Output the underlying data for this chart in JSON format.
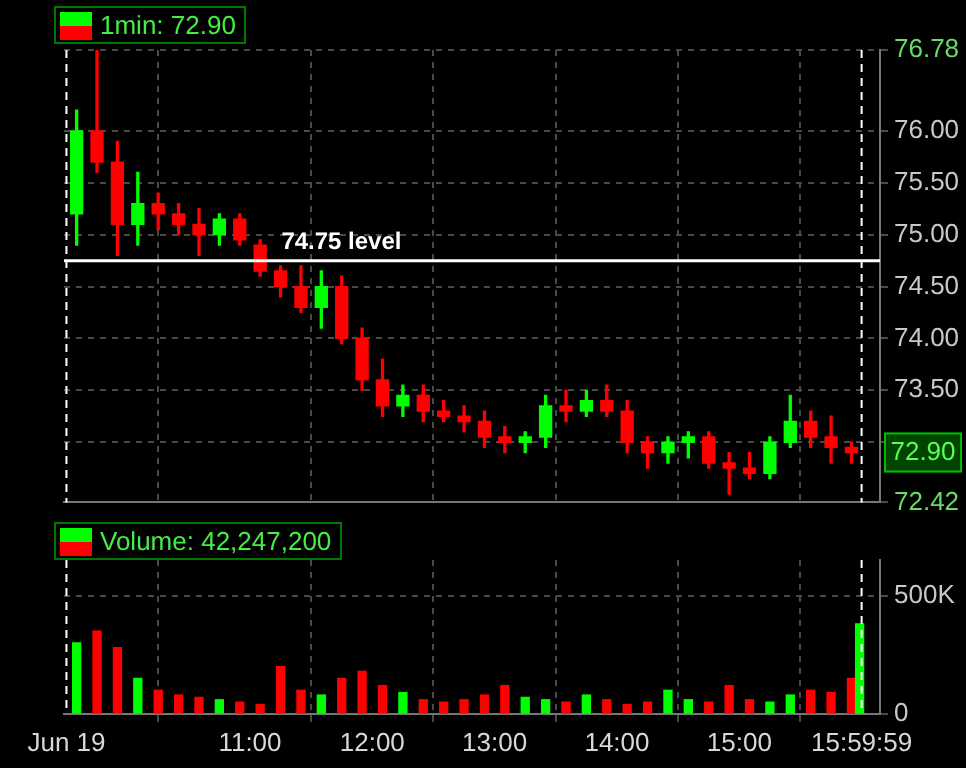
{
  "chart_data": [
    {
      "type": "candlestick",
      "series": [
        {
          "name": "1min: 72.90",
          "x": [
            9.5833,
            9.75,
            9.9167,
            10.0833,
            10.25,
            10.4167,
            10.5833,
            10.75,
            10.9167,
            11.0833,
            11.25,
            11.4167,
            11.5833,
            11.75,
            11.9167,
            12.0833,
            12.25,
            12.4167,
            12.5833,
            12.75,
            12.9167,
            13.0833,
            13.25,
            13.4167,
            13.5833,
            13.75,
            13.9167,
            14.0833,
            14.25,
            14.4167,
            14.5833,
            14.75,
            14.9167,
            15.0833,
            15.25,
            15.4167,
            15.5833,
            15.75,
            15.9167
          ],
          "ohlc": [
            [
              75.2,
              76.2,
              74.9,
              76.0
            ],
            [
              76.0,
              76.78,
              75.6,
              75.7
            ],
            [
              75.7,
              75.9,
              74.8,
              75.1
            ],
            [
              75.1,
              75.6,
              74.9,
              75.3
            ],
            [
              75.3,
              75.4,
              75.05,
              75.2
            ],
            [
              75.2,
              75.3,
              75.0,
              75.1
            ],
            [
              75.1,
              75.25,
              74.8,
              75.0
            ],
            [
              75.0,
              75.2,
              74.9,
              75.15
            ],
            [
              75.15,
              75.2,
              74.9,
              74.95
            ],
            [
              74.9,
              74.95,
              74.6,
              74.65
            ],
            [
              74.65,
              74.7,
              74.4,
              74.5
            ],
            [
              74.5,
              74.7,
              74.25,
              74.3
            ],
            [
              74.3,
              74.65,
              74.1,
              74.5
            ],
            [
              74.5,
              74.6,
              73.95,
              74.0
            ],
            [
              74.0,
              74.1,
              73.5,
              73.6
            ],
            [
              73.6,
              73.8,
              73.25,
              73.35
            ],
            [
              73.35,
              73.55,
              73.25,
              73.45
            ],
            [
              73.45,
              73.55,
              73.2,
              73.3
            ],
            [
              73.3,
              73.4,
              73.2,
              73.25
            ],
            [
              73.25,
              73.35,
              73.1,
              73.2
            ],
            [
              73.2,
              73.3,
              72.95,
              73.05
            ],
            [
              73.05,
              73.15,
              72.9,
              73.0
            ],
            [
              73.0,
              73.1,
              72.9,
              73.05
            ],
            [
              73.05,
              73.45,
              72.95,
              73.35
            ],
            [
              73.35,
              73.5,
              73.2,
              73.3
            ],
            [
              73.3,
              73.5,
              73.25,
              73.4
            ],
            [
              73.4,
              73.55,
              73.25,
              73.3
            ],
            [
              73.3,
              73.4,
              72.9,
              73.0
            ],
            [
              73.0,
              73.05,
              72.75,
              72.9
            ],
            [
              72.9,
              73.05,
              72.8,
              73.0
            ],
            [
              73.0,
              73.1,
              72.85,
              73.05
            ],
            [
              73.05,
              73.1,
              72.75,
              72.8
            ],
            [
              72.8,
              72.9,
              72.5,
              72.75
            ],
            [
              72.75,
              72.9,
              72.65,
              72.7
            ],
            [
              72.7,
              73.05,
              72.65,
              73.0
            ],
            [
              73.0,
              73.45,
              72.95,
              73.2
            ],
            [
              73.2,
              73.3,
              72.95,
              73.05
            ],
            [
              73.05,
              73.25,
              72.8,
              72.95
            ],
            [
              72.95,
              73.0,
              72.8,
              72.9
            ]
          ],
          "colors": [
            "#00ff00",
            "#ff0000",
            "#ff0000",
            "#00ff00",
            "#ff0000",
            "#ff0000",
            "#ff0000",
            "#00ff00",
            "#ff0000",
            "#ff0000",
            "#ff0000",
            "#ff0000",
            "#00ff00",
            "#ff0000",
            "#ff0000",
            "#ff0000",
            "#00ff00",
            "#ff0000",
            "#ff0000",
            "#ff0000",
            "#ff0000",
            "#ff0000",
            "#00ff00",
            "#00ff00",
            "#ff0000",
            "#00ff00",
            "#ff0000",
            "#ff0000",
            "#ff0000",
            "#00ff00",
            "#00ff00",
            "#ff0000",
            "#ff0000",
            "#ff0000",
            "#00ff00",
            "#00ff00",
            "#ff0000",
            "#ff0000",
            "#ff0000"
          ]
        }
      ],
      "xlim": [
        9.48,
        16.15
      ],
      "xticks": [
        {
          "value": 9.5,
          "label": null
        },
        {
          "value": 11,
          "label": null
        },
        {
          "value": 12,
          "label": null
        },
        {
          "value": 13,
          "label": null
        },
        {
          "value": 14,
          "label": null
        },
        {
          "value": 15,
          "label": null
        },
        {
          "value": 15.9997,
          "label": null
        }
      ],
      "ylim": [
        72.42,
        76.78
      ],
      "yticks": [
        {
          "value": 72.42,
          "label": "72.42"
        },
        {
          "value": 73,
          "label": null
        },
        {
          "value": 73.5,
          "label": "73.50"
        },
        {
          "value": 74,
          "label": "74.00"
        },
        {
          "value": 74.5,
          "label": "74.50"
        },
        {
          "value": 75,
          "label": "75.00"
        },
        {
          "value": 75.5,
          "label": "75.50"
        },
        {
          "value": 76,
          "label": "76.00"
        },
        {
          "value": 76.78,
          "label": "76.78"
        }
      ],
      "tick_labels": "y",
      "grid": true,
      "legend": "top left",
      "ref_lines": [
        {
          "axis": "y",
          "value": 74.75,
          "label": "74.75 level",
          "color": "#ffffff"
        },
        {
          "axis": "x",
          "value": 9.5,
          "color": "#ffffff",
          "line_style": "dashed"
        },
        {
          "axis": "x",
          "value": 15.9997,
          "color": "#ffffff",
          "line_style": "dashed"
        }
      ],
      "annotations": [
        "72.90"
      ]
    },
    {
      "type": "bar",
      "series": [
        {
          "name": "Volume: 42,247,200",
          "x": [
            9.5833,
            9.75,
            9.9167,
            10.0833,
            10.25,
            10.4167,
            10.5833,
            10.75,
            10.9167,
            11.0833,
            11.25,
            11.4167,
            11.5833,
            11.75,
            11.9167,
            12.0833,
            12.25,
            12.4167,
            12.5833,
            12.75,
            12.9167,
            13.0833,
            13.25,
            13.4167,
            13.5833,
            13.75,
            13.9167,
            14.0833,
            14.25,
            14.4167,
            14.5833,
            14.75,
            14.9167,
            15.0833,
            15.25,
            15.4167,
            15.5833,
            15.75,
            15.9167,
            15.9833
          ],
          "values": [
            300000,
            350000,
            280000,
            150000,
            100000,
            80000,
            70000,
            60000,
            50000,
            40000,
            200000,
            100000,
            80000,
            150000,
            180000,
            120000,
            90000,
            60000,
            50000,
            60000,
            80000,
            120000,
            70000,
            60000,
            50000,
            80000,
            60000,
            40000,
            50000,
            100000,
            60000,
            50000,
            120000,
            60000,
            50000,
            80000,
            100000,
            90000,
            150000,
            380000
          ],
          "colors": [
            "#00ff00",
            "#ff0000",
            "#ff0000",
            "#00ff00",
            "#ff0000",
            "#ff0000",
            "#ff0000",
            "#00ff00",
            "#ff0000",
            "#ff0000",
            "#ff0000",
            "#ff0000",
            "#00ff00",
            "#ff0000",
            "#ff0000",
            "#ff0000",
            "#00ff00",
            "#ff0000",
            "#ff0000",
            "#ff0000",
            "#ff0000",
            "#ff0000",
            "#00ff00",
            "#00ff00",
            "#ff0000",
            "#00ff00",
            "#ff0000",
            "#ff0000",
            "#ff0000",
            "#00ff00",
            "#00ff00",
            "#ff0000",
            "#ff0000",
            "#ff0000",
            "#00ff00",
            "#00ff00",
            "#ff0000",
            "#ff0000",
            "#ff0000",
            "#00ff00"
          ]
        }
      ],
      "xlim": [
        9.48,
        16.15
      ],
      "xticks": [
        {
          "value": 9.5,
          "label": "Jun 19"
        },
        {
          "value": 11,
          "label": "11:00"
        },
        {
          "value": 12,
          "label": "12:00"
        },
        {
          "value": 13,
          "label": "13:00"
        },
        {
          "value": 14,
          "label": "14:00"
        },
        {
          "value": 15,
          "label": "15:00"
        },
        {
          "value": 15.9997,
          "label": "15:59:59"
        }
      ],
      "ylim": [
        0,
        650000
      ],
      "yticks": [
        0,
        {
          "value": 500000,
          "label": "500K"
        }
      ],
      "grid": true,
      "legend": "top left",
      "ref_lines": [
        {
          "axis": "x",
          "value": 9.5,
          "color": "#ffffff",
          "line_style": "dashed"
        },
        {
          "axis": "x",
          "value": 15.9997,
          "color": "#ffffff",
          "line_style": "dashed"
        }
      ]
    }
  ]
}
